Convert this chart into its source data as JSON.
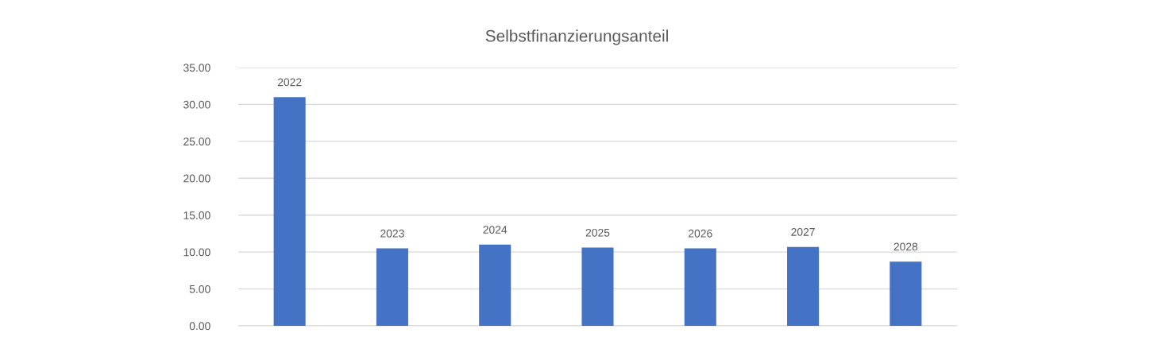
{
  "chart_data": {
    "type": "bar",
    "title": "Selbstfinanzierungsanteil",
    "categories": [
      "2022",
      "2023",
      "2024",
      "2025",
      "2026",
      "2027",
      "2028"
    ],
    "values": [
      31.0,
      10.5,
      11.0,
      10.6,
      10.5,
      10.7,
      8.7
    ],
    "color": "#4472c4",
    "ylim": [
      0,
      35
    ],
    "yticks": [
      {
        "value": 0,
        "label": "0.00"
      },
      {
        "value": 5,
        "label": "5.00"
      },
      {
        "value": 10,
        "label": "10.00"
      },
      {
        "value": 15,
        "label": "15.00"
      },
      {
        "value": 20,
        "label": "20.00"
      },
      {
        "value": 25,
        "label": "25.00"
      },
      {
        "value": 30,
        "label": "30.00"
      },
      {
        "value": 35,
        "label": "35.00"
      }
    ],
    "grid": "y"
  }
}
